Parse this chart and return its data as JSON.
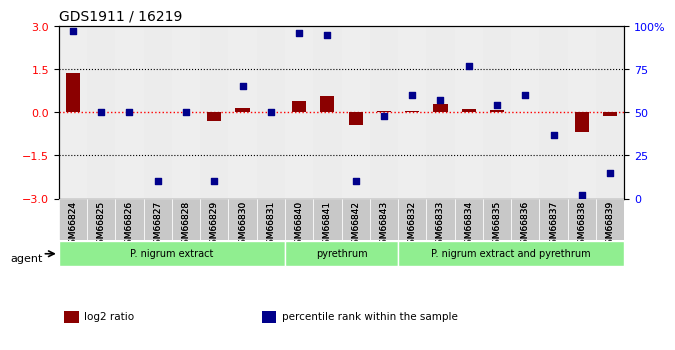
{
  "title": "GDS1911 / 16219",
  "samples": [
    "GSM66824",
    "GSM66825",
    "GSM66826",
    "GSM66827",
    "GSM66828",
    "GSM66829",
    "GSM66830",
    "GSM66831",
    "GSM66840",
    "GSM66841",
    "GSM66842",
    "GSM66843",
    "GSM66832",
    "GSM66833",
    "GSM66834",
    "GSM66835",
    "GSM66836",
    "GSM66837",
    "GSM66838",
    "GSM66839"
  ],
  "log2_ratio": [
    1.35,
    0.0,
    0.0,
    0.0,
    0.0,
    -0.3,
    0.15,
    0.0,
    0.4,
    0.55,
    -0.45,
    0.05,
    0.05,
    0.3,
    0.12,
    0.08,
    0.0,
    0.0,
    -0.7,
    -0.12
  ],
  "percentile": [
    97,
    50,
    50,
    10,
    50,
    10,
    65,
    50,
    96,
    95,
    10,
    48,
    60,
    57,
    77,
    54,
    60,
    37,
    2,
    15
  ],
  "log2_color": "#8B0000",
  "pct_color": "#00008B",
  "bg_color": "#f5f5f5",
  "ylim_left": [
    -3,
    3
  ],
  "ylim_right": [
    0,
    100
  ],
  "yticks_left": [
    -3,
    -1.5,
    0,
    1.5,
    3
  ],
  "yticks_right": [
    0,
    25,
    50,
    75,
    100
  ],
  "ytick_labels_right": [
    "0",
    "25",
    "50",
    "75",
    "100%"
  ],
  "hlines": [
    0,
    1.5,
    -1.5
  ],
  "groups": [
    {
      "label": "P. nigrum extract",
      "start": 0,
      "end": 8,
      "color": "#90EE90"
    },
    {
      "label": "pyrethrum",
      "start": 8,
      "end": 12,
      "color": "#90EE90"
    },
    {
      "label": "P. nigrum extract and pyrethrum",
      "start": 12,
      "end": 20,
      "color": "#90EE90"
    }
  ],
  "agent_label": "agent",
  "legend_items": [
    {
      "label": "log2 ratio",
      "color": "#8B0000"
    },
    {
      "label": "percentile rank within the sample",
      "color": "#00008B"
    }
  ],
  "bar_width": 0.5
}
